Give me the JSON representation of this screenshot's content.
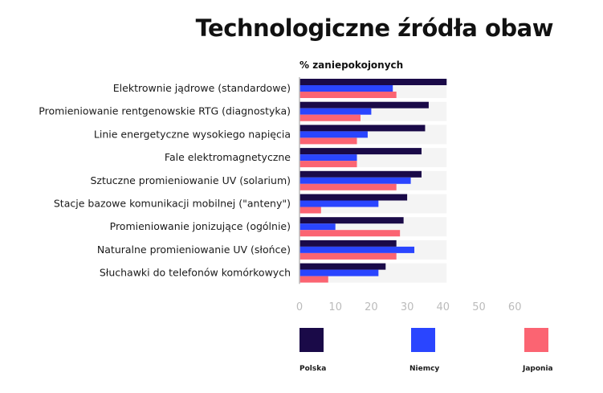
{
  "chart_data": {
    "type": "bar",
    "orientation": "horizontal",
    "title": "Technologiczne źródła obaw",
    "xlabel": "% zaniepokojonych",
    "ylabel": "",
    "xlim": [
      0,
      60
    ],
    "xticks": [
      "0",
      "10",
      "20",
      "30",
      "40",
      "50",
      "60"
    ],
    "categories": [
      "Elektrownie jądrowe (standardowe)",
      "Promieniowanie rentgenowskie RTG (diagnostyka)",
      "Linie energetyczne wysokiego napięcia",
      "Fale elektromagnetyczne",
      "Sztuczne promieniowanie UV (solarium)",
      "Stacje bazowe komunikacji mobilnej (\"anteny\")",
      "Promieniowanie jonizujące (ogólnie)",
      "Naturalne promieniowanie UV (słońce)",
      "Słuchawki do telefonów komórkowych"
    ],
    "series": [
      {
        "name": "Polska",
        "color": "#1a0a48",
        "values": [
          41,
          36,
          35,
          34,
          34,
          30,
          29,
          27,
          24
        ]
      },
      {
        "name": "Niemcy",
        "color": "#2a45ff",
        "values": [
          26,
          20,
          19,
          16,
          31,
          22,
          10,
          32,
          22
        ]
      },
      {
        "name": "Japonia",
        "color": "#fb6472",
        "values": [
          27,
          17,
          16,
          16,
          27,
          6,
          28,
          27,
          8
        ]
      }
    ],
    "background_max": 41,
    "legend_position": "bottom",
    "grid": false
  }
}
